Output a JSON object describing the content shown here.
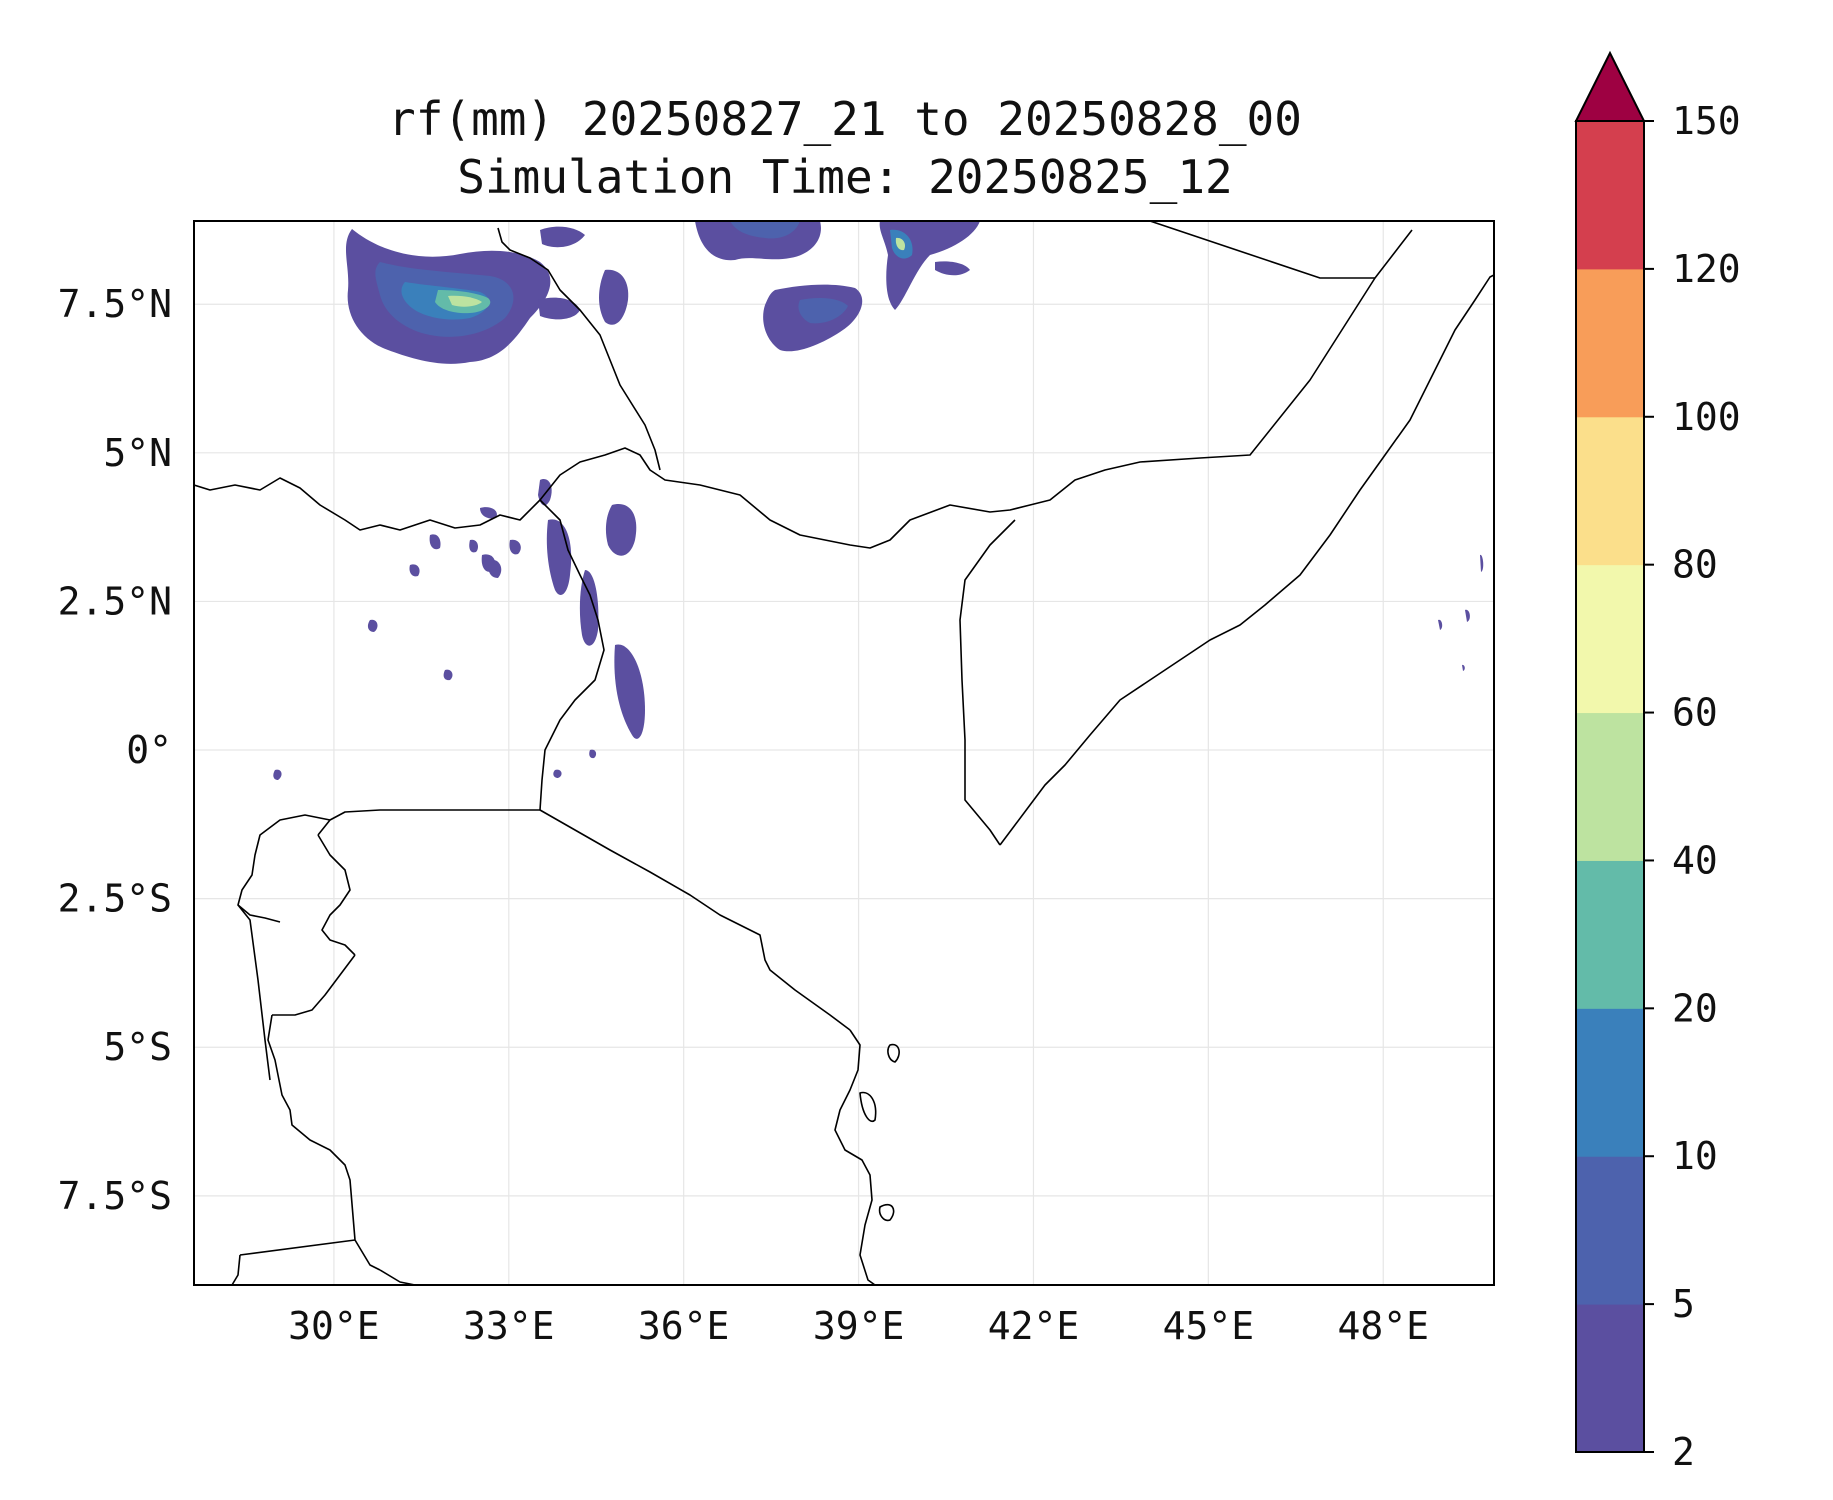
{
  "title": {
    "line1": "rf(mm) 20250827_21 to 20250828_00",
    "line2": "Simulation Time: 20250825_12"
  },
  "map": {
    "lon_range": [
      27.6,
      49.9
    ],
    "lat_range": [
      -9.0,
      8.9
    ],
    "lon_ticks": [
      {
        "value": 30,
        "label": "30°E"
      },
      {
        "value": 33,
        "label": "33°E"
      },
      {
        "value": 36,
        "label": "36°E"
      },
      {
        "value": 39,
        "label": "39°E"
      },
      {
        "value": 42,
        "label": "42°E"
      },
      {
        "value": 45,
        "label": "45°E"
      },
      {
        "value": 48,
        "label": "48°E"
      }
    ],
    "lat_ticks": [
      {
        "value": 7.5,
        "label": "7.5°N"
      },
      {
        "value": 5,
        "label": "5°N"
      },
      {
        "value": 2.5,
        "label": "2.5°N"
      },
      {
        "value": 0,
        "label": "0°"
      },
      {
        "value": -2.5,
        "label": "2.5°S"
      },
      {
        "value": -5,
        "label": "5°S"
      },
      {
        "value": -7.5,
        "label": "7.5°S"
      }
    ],
    "gridlines": true
  },
  "colorbar": {
    "levels": [
      "2",
      "5",
      "10",
      "20",
      "40",
      "60",
      "80",
      "100",
      "120",
      "150"
    ],
    "colors": [
      "#5b4fa0",
      "#4d62ad",
      "#3a80bb",
      "#63bba9",
      "#bde3a0",
      "#f2f8ac",
      "#fbdf8b",
      "#f89d59",
      "#d43f4e"
    ],
    "extend_color": "#9e0142",
    "extend": "max"
  },
  "colors": {
    "boundary": "#000000",
    "grid": "#e6e6e6"
  }
}
